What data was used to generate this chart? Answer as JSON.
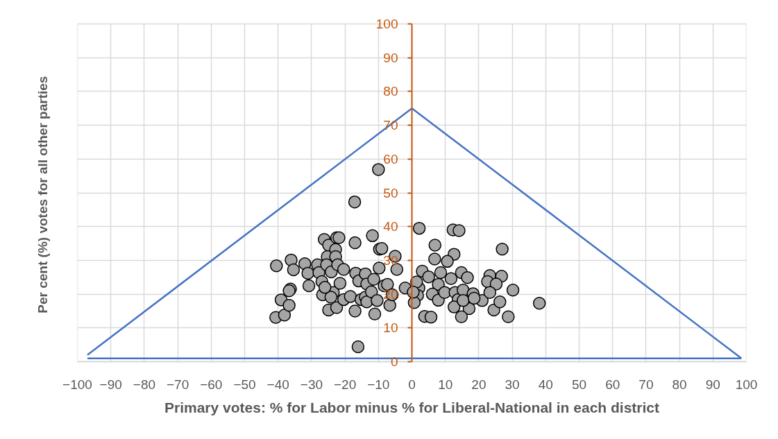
{
  "chart_data": {
    "type": "scatter",
    "xlabel": "Primary votes: % for Labor minus % for Liberal-National in each district",
    "ylabel": "Per cent (%)  votes for all other parties",
    "xlim": [
      -100,
      100
    ],
    "xticks": [
      -100,
      -90,
      -80,
      -70,
      -60,
      -50,
      -40,
      -30,
      -20,
      -10,
      0,
      10,
      20,
      30,
      40,
      50,
      60,
      70,
      80,
      90,
      100
    ],
    "ylim": [
      0,
      100
    ],
    "yticks": [
      0,
      10,
      20,
      30,
      40,
      50,
      60,
      70,
      80,
      90,
      100
    ],
    "grid": true,
    "marker": "circle",
    "series": [
      {
        "type": "line",
        "color": "#4472c4",
        "marker": "none",
        "x": [
          -97,
          0,
          98.5
        ],
        "values": [
          2,
          75,
          1
        ]
      },
      {
        "type": "line",
        "color": "#4472c4",
        "marker": "none",
        "x": [
          -97,
          98.5
        ],
        "values": [
          1,
          1
        ]
      },
      {
        "color": "#a5a5a5",
        "x": [
          -40.5,
          -40.7,
          -38.1,
          -39.1,
          -36.7,
          -36.3,
          -36.7,
          -36.1,
          -35.4,
          -32.0,
          -31.1,
          -30.8,
          -28.2,
          -27.8,
          -26.9,
          -26.7,
          -26.2,
          -24.9,
          -25.3,
          -25.5,
          -24.9,
          -23.5,
          -24.1,
          -22.8,
          -22.5,
          -21.8,
          -22.8,
          -22.2,
          -20.4,
          -21.5,
          -24.2,
          -22.5,
          -20.4,
          -18.4,
          -17.0,
          -16.8,
          -15.9,
          -17.0,
          -16.1,
          -15.2,
          -13.9,
          -13.5,
          -13.9,
          -13.5,
          -11.8,
          -11.4,
          -12.1,
          -11.1,
          -10.4,
          -9.7,
          -9.0,
          -9.8,
          -8.3,
          -7.3,
          -6.6,
          -5.9,
          -5.0,
          -4.5,
          -2.0,
          -17.1,
          -10.0,
          -26.0,
          2.2,
          12.3,
          14.1,
          6.9,
          27.0,
          6.8,
          12.6,
          10.6,
          3.1,
          5.0,
          8.6,
          11.7,
          14.8,
          16.6,
          23.3,
          26.8,
          22.6,
          25.2,
          30.2,
          38.1,
          7.9,
          2.1,
          1.4,
          1.7,
          0.7,
          6.1,
          7.9,
          9.8,
          12.9,
          13.8,
          15.3,
          18.3,
          17.1,
          12.6,
          14.8,
          3.8,
          5.7,
          21.0,
          23.3,
          24.5,
          26.3,
          28.8,
          15.3,
          18.6,
          0.4
        ],
        "values": [
          28.4,
          13.1,
          13.8,
          18.3,
          16.7,
          21.5,
          21.0,
          30.1,
          27.2,
          29.0,
          26.2,
          22.5,
          28.7,
          26.4,
          23.7,
          19.8,
          36.2,
          34.5,
          31.1,
          28.7,
          15.3,
          20.5,
          26.6,
          33.2,
          36.7,
          36.7,
          31.1,
          28.7,
          27.3,
          23.2,
          19.1,
          16.0,
          18.4,
          19.3,
          35.2,
          26.2,
          23.9,
          15.0,
          4.4,
          18.4,
          19.1,
          17.7,
          26.0,
          23.0,
          37.3,
          24.4,
          20.7,
          14.1,
          18.1,
          33.3,
          33.5,
          27.7,
          22.5,
          22.9,
          16.7,
          19.8,
          31.2,
          27.3,
          21.8,
          47.3,
          56.9,
          22.0,
          39.5,
          39.0,
          38.8,
          34.5,
          33.3,
          30.4,
          31.8,
          29.7,
          26.8,
          25.1,
          26.4,
          24.6,
          26.4,
          24.9,
          25.5,
          25.3,
          23.7,
          23.0,
          21.2,
          17.3,
          22.9,
          21.8,
          23.6,
          19.6,
          17.5,
          20.0,
          18.2,
          20.5,
          20.5,
          18.4,
          21.2,
          20.1,
          15.7,
          16.2,
          13.3,
          13.4,
          13.2,
          18.1,
          20.5,
          15.3,
          17.7,
          13.3,
          18.1,
          18.8,
          20.6
        ]
      }
    ]
  }
}
